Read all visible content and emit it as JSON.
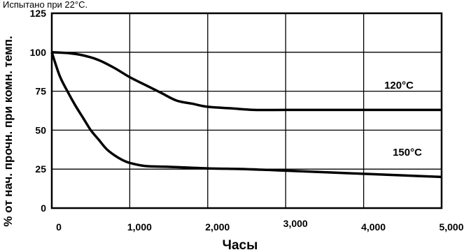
{
  "header_text": "Испытано при 22°C.",
  "chart_data": {
    "type": "line",
    "xlabel": "Часы",
    "ylabel": "% от нач. прочн. при комн. темп.",
    "xlim": [
      0,
      5000
    ],
    "ylim": [
      0,
      125
    ],
    "x_ticks": [
      0,
      1000,
      2000,
      3000,
      4000,
      5000
    ],
    "x_tick_labels": [
      "0",
      "1,000",
      "2,000",
      "3,000",
      "4,000",
      "5,000"
    ],
    "y_ticks": [
      0,
      25,
      50,
      75,
      100,
      125
    ],
    "y_tick_labels": [
      "0",
      "25",
      "50",
      "75",
      "100",
      "125"
    ],
    "grid": true,
    "series": [
      {
        "name": "120°C",
        "x": [
          0,
          200,
          400,
          600,
          800,
          1000,
          1200,
          1400,
          1600,
          1800,
          2000,
          2300,
          2600,
          3000,
          3500,
          4000,
          4500,
          5000
        ],
        "y": [
          100,
          99.5,
          98,
          95,
          90,
          84,
          79,
          74,
          69,
          67,
          65,
          64,
          63,
          63,
          63,
          63,
          63,
          63
        ]
      },
      {
        "name": "150°C",
        "x": [
          0,
          100,
          200,
          300,
          400,
          500,
          600,
          700,
          800,
          900,
          1000,
          1200,
          1500,
          2000,
          2500,
          3000,
          3500,
          4000,
          4500,
          5000
        ],
        "y": [
          100,
          85,
          75,
          66,
          58,
          50,
          44,
          38,
          34,
          31,
          29,
          27,
          26.5,
          25.5,
          25,
          24,
          23,
          22,
          21,
          20
        ]
      }
    ]
  }
}
